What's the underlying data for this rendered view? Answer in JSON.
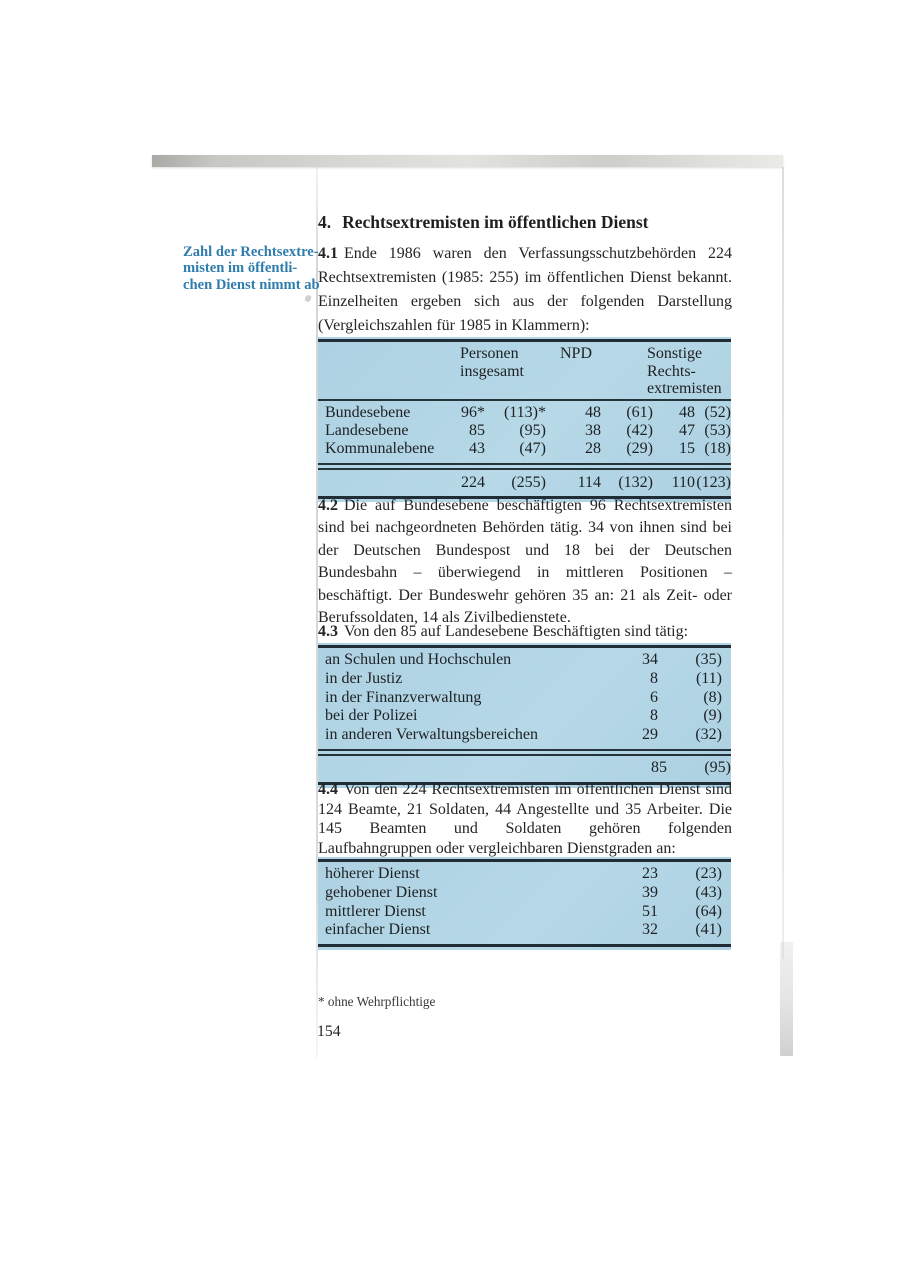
{
  "page": {
    "heading_number": "4.",
    "heading_text": "Rechtsextremisten im öffentlichen Dienst",
    "margin_note": {
      "line1": "Zahl der Rechtsextre-",
      "line2": "misten im öffentli-",
      "line3": "chen Dienst nimmt ab"
    },
    "paragraphs": {
      "p41_num": "4.1",
      "p41_text": "Ende 1986 waren den Verfassungsschutzbehörden 224 Rechtsex­tremisten (1985: 255) im öffentlichen Dienst bekannt. Einzelheiten ergeben sich aus der folgenden Darstellung (Vergleichszahlen für 1985 in Klammern):",
      "p42_num": "4.2",
      "p42_text": "Die auf Bundesebene beschäftigten 96 Rechtsextremisten sind bei nachgeordneten Behörden tätig. 34 von ihnen sind bei der Deutschen Bundespost und 18 bei der Deutschen Bundesbahn – überwiegend in mittleren Positionen – beschäftigt. Der Bundeswehr gehören 35 an: 21 als Zeit- oder Berufssoldaten, 14 als Zivilbe­dienstete.",
      "p43_num": "4.3",
      "p43_text": "Von den 85 auf Landesebene Beschäftigten sind tätig:",
      "p44_num": "4.4",
      "p44_text": "Von den 224 Rechtsextremisten im öffentlichen Dienst sind 124 Beamte, 21 Soldaten, 44 Angestellte und 35 Arbeiter. Die 145 Beamten und Soldaten gehören folgenden Laufbahngruppen oder vergleichbaren Dienstgraden an:"
    },
    "footnote": "* ohne Wehrpflichtige",
    "page_number": "154"
  },
  "table1": {
    "header": {
      "col1_line1": "Personen",
      "col1_line2": "insgesamt",
      "col2": "NPD",
      "col3_line1": "Sonstige",
      "col3_line2": "Rechts-",
      "col3_line3": "extremisten"
    },
    "rows": [
      {
        "label": "Bundesebene",
        "v1": "96*",
        "v1p": "(113)*",
        "v2": "48",
        "v2p": "(61)",
        "v3": "48",
        "v3p": "(52)"
      },
      {
        "label": "Landesebene",
        "v1": "85",
        "v1p": "(95)",
        "v2": "38",
        "v2p": "(42)",
        "v3": "47",
        "v3p": "(53)"
      },
      {
        "label": "Kommunalebene",
        "v1": "43",
        "v1p": "(47)",
        "v2": "28",
        "v2p": "(29)",
        "v3": "15",
        "v3p": "(18)"
      }
    ],
    "total": {
      "v1": "224",
      "v1p": "(255)",
      "v2": "114",
      "v2p": "(132)",
      "v3": "110",
      "v3p": "(123)"
    }
  },
  "table2": {
    "rows": [
      {
        "label": "an Schulen und Hochschulen",
        "v1": "34",
        "v2": "(35)"
      },
      {
        "label": "in der Justiz",
        "v1": "8",
        "v2": "(11)"
      },
      {
        "label": "in der Finanzverwaltung",
        "v1": "6",
        "v2": "(8)"
      },
      {
        "label": "bei der Polizei",
        "v1": "8",
        "v2": "(9)"
      },
      {
        "label": "in anderen Verwaltungsbereichen",
        "v1": "29",
        "v2": "(32)"
      }
    ],
    "total": {
      "v1": "85",
      "v2": "(95)"
    }
  },
  "table3": {
    "rows": [
      {
        "label": "höherer Dienst",
        "v1": "23",
        "v2": "(23)"
      },
      {
        "label": "gehobener Dienst",
        "v1": "39",
        "v2": "(43)"
      },
      {
        "label": "mittlerer Dienst",
        "v1": "51",
        "v2": "(64)"
      },
      {
        "label": "einfacher Dienst",
        "v1": "32",
        "v2": "(41)"
      }
    ]
  },
  "colors": {
    "table_background": "#b1d5e5",
    "margin_note_blue": "#2f7dad",
    "rule_dark": "#212d36"
  }
}
